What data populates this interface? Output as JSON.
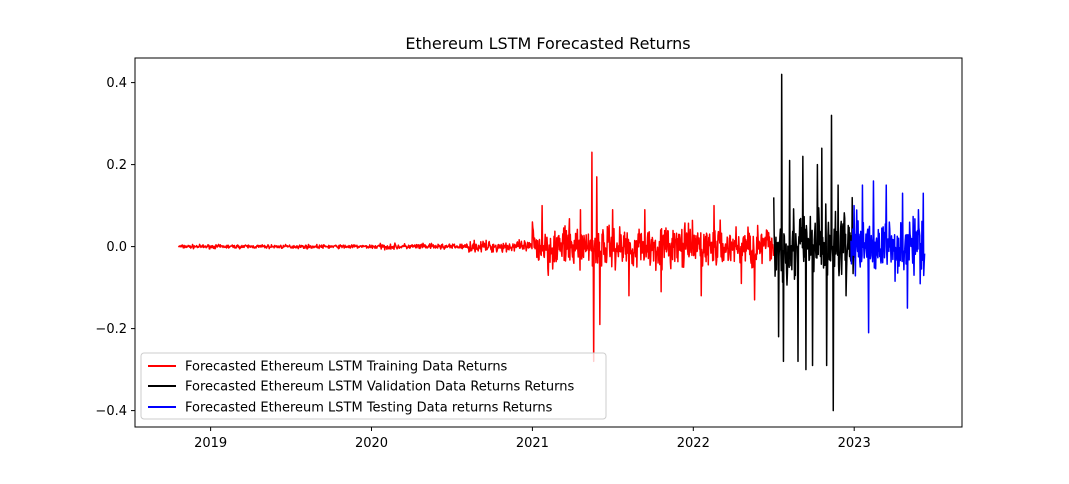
{
  "chart_data": {
    "type": "line",
    "title": "Ethereum LSTM Forecasted Returns",
    "xlabel": "",
    "ylabel": "",
    "xlim": [
      2018.53,
      2023.67
    ],
    "ylim": [
      -0.44,
      0.46
    ],
    "x_ticks": [
      2019,
      2020,
      2021,
      2022,
      2023
    ],
    "x_tick_labels": [
      "2019",
      "2020",
      "2021",
      "2022",
      "2023"
    ],
    "y_ticks": [
      -0.4,
      -0.2,
      0.0,
      0.2,
      0.4
    ],
    "y_tick_labels": [
      "−0.4",
      "−0.2",
      "0.0",
      "0.2",
      "0.4"
    ],
    "grid": false,
    "legend_position": "lower-left",
    "series": [
      {
        "name": "Forecasted Ethereum LSTM Training Data Returns",
        "color": "#ff0000",
        "x_range": [
          2018.8,
          2022.5
        ],
        "segments": [
          {
            "x_range": [
              2018.8,
              2020.0
            ],
            "amplitude": 0.004,
            "noise": "low"
          },
          {
            "x_range": [
              2020.0,
              2020.6
            ],
            "amplitude": 0.006,
            "noise": "low"
          },
          {
            "x_range": [
              2020.6,
              2021.0
            ],
            "amplitude": 0.012,
            "noise": "moderate"
          },
          {
            "x_range": [
              2021.0,
              2022.5
            ],
            "amplitude": 0.045,
            "noise": "high"
          }
        ],
        "extremes": [
          {
            "x": 2021.0,
            "y": 0.06
          },
          {
            "x": 2021.06,
            "y": 0.1
          },
          {
            "x": 2021.1,
            "y": -0.07
          },
          {
            "x": 2021.3,
            "y": 0.09
          },
          {
            "x": 2021.37,
            "y": 0.23
          },
          {
            "x": 2021.38,
            "y": -0.28
          },
          {
            "x": 2021.4,
            "y": 0.17
          },
          {
            "x": 2021.42,
            "y": -0.19
          },
          {
            "x": 2021.5,
            "y": 0.09
          },
          {
            "x": 2021.6,
            "y": -0.12
          },
          {
            "x": 2021.7,
            "y": 0.09
          },
          {
            "x": 2021.8,
            "y": -0.11
          },
          {
            "x": 2022.05,
            "y": -0.12
          },
          {
            "x": 2022.13,
            "y": 0.1
          },
          {
            "x": 2022.3,
            "y": -0.09
          },
          {
            "x": 2022.38,
            "y": -0.13
          }
        ]
      },
      {
        "name": "Forecasted Ethereum LSTM Validation Data Returns Returns",
        "color": "#000000",
        "x_range": [
          2022.5,
          2023.0
        ],
        "amplitude": 0.08,
        "extremes": [
          {
            "x": 2022.5,
            "y": 0.12
          },
          {
            "x": 2022.53,
            "y": -0.22
          },
          {
            "x": 2022.55,
            "y": 0.42
          },
          {
            "x": 2022.56,
            "y": -0.28
          },
          {
            "x": 2022.6,
            "y": 0.21
          },
          {
            "x": 2022.65,
            "y": -0.28
          },
          {
            "x": 2022.68,
            "y": 0.22
          },
          {
            "x": 2022.7,
            "y": -0.3
          },
          {
            "x": 2022.74,
            "y": -0.29
          },
          {
            "x": 2022.77,
            "y": 0.2
          },
          {
            "x": 2022.8,
            "y": 0.24
          },
          {
            "x": 2022.83,
            "y": -0.29
          },
          {
            "x": 2022.86,
            "y": 0.32
          },
          {
            "x": 2022.87,
            "y": -0.4
          },
          {
            "x": 2022.9,
            "y": 0.15
          },
          {
            "x": 2022.95,
            "y": -0.12
          }
        ]
      },
      {
        "name": "Forecasted Ethereum LSTM Testing Data returns Returns",
        "color": "#0000ff",
        "x_range": [
          2022.98,
          2023.44
        ],
        "amplitude": 0.06,
        "extremes": [
          {
            "x": 2023.0,
            "y": 0.1
          },
          {
            "x": 2023.05,
            "y": 0.15
          },
          {
            "x": 2023.09,
            "y": -0.21
          },
          {
            "x": 2023.12,
            "y": 0.16
          },
          {
            "x": 2023.2,
            "y": 0.15
          },
          {
            "x": 2023.3,
            "y": 0.13
          },
          {
            "x": 2023.33,
            "y": -0.15
          },
          {
            "x": 2023.4,
            "y": 0.09
          },
          {
            "x": 2023.43,
            "y": 0.13
          },
          {
            "x": 2023.44,
            "y": -0.1
          }
        ]
      }
    ]
  }
}
